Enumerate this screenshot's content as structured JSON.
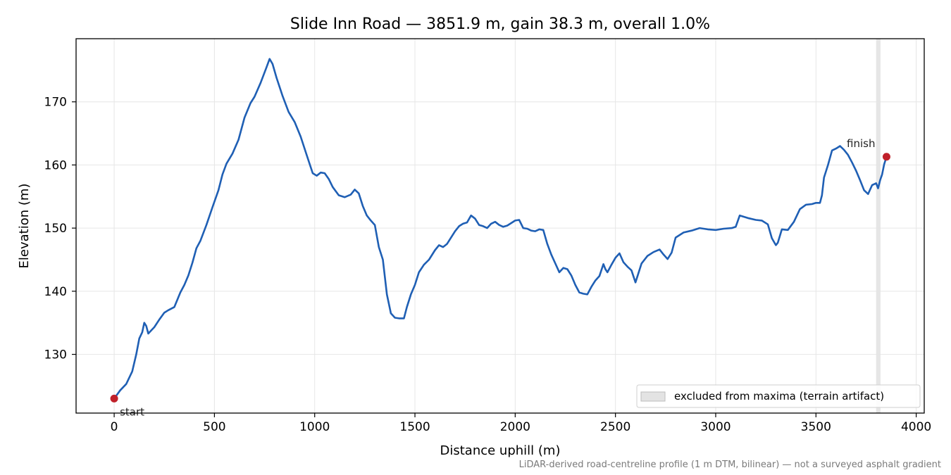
{
  "chart_data": {
    "type": "line",
    "title": "Slide Inn Road — 3851.9 m, gain 38.3 m, overall 1.0%",
    "xlabel": "Distance uphill (m)",
    "ylabel": "Elevation (m)",
    "xlim": [
      -190,
      4040
    ],
    "ylim": [
      120.7,
      180.0
    ],
    "xticks": [
      0,
      500,
      1000,
      1500,
      2000,
      2500,
      3000,
      3500,
      4000
    ],
    "yticks": [
      130,
      140,
      150,
      160,
      170
    ],
    "grid": true,
    "legend": {
      "placement": "lower-right",
      "entries": [
        "excluded from maxima (terrain artifact)"
      ]
    },
    "excluded_band": {
      "x": [
        3800,
        3822
      ],
      "color": "#e3e3e3"
    },
    "series": [
      {
        "color": "#1f5fb4",
        "x": [
          0,
          30,
          60,
          90,
          110,
          125,
          140,
          150,
          160,
          170,
          185,
          200,
          225,
          250,
          270,
          300,
          330,
          350,
          370,
          390,
          410,
          430,
          460,
          490,
          520,
          540,
          560,
          590,
          620,
          650,
          680,
          700,
          730,
          760,
          775,
          790,
          810,
          840,
          870,
          900,
          930,
          960,
          990,
          1010,
          1030,
          1050,
          1070,
          1090,
          1120,
          1150,
          1180,
          1200,
          1220,
          1240,
          1260,
          1280,
          1300,
          1320,
          1340,
          1360,
          1380,
          1400,
          1420,
          1445,
          1460,
          1480,
          1500,
          1520,
          1545,
          1570,
          1600,
          1620,
          1640,
          1660,
          1680,
          1700,
          1720,
          1740,
          1760,
          1780,
          1800,
          1820,
          1840,
          1860,
          1880,
          1900,
          1920,
          1940,
          1960,
          1980,
          2000,
          2020,
          2040,
          2060,
          2080,
          2100,
          2120,
          2140,
          2160,
          2180,
          2200,
          2220,
          2240,
          2260,
          2280,
          2300,
          2320,
          2340,
          2360,
          2380,
          2400,
          2420,
          2440,
          2450,
          2460,
          2480,
          2500,
          2520,
          2540,
          2560,
          2580,
          2600,
          2610,
          2630,
          2660,
          2690,
          2720,
          2740,
          2760,
          2780,
          2800,
          2840,
          2880,
          2920,
          2960,
          3000,
          3040,
          3080,
          3100,
          3120,
          3160,
          3200,
          3230,
          3260,
          3280,
          3300,
          3310,
          3330,
          3360,
          3390,
          3420,
          3450,
          3480,
          3500,
          3520,
          3530,
          3540,
          3560,
          3580,
          3600,
          3620,
          3640,
          3660,
          3680,
          3700,
          3720,
          3740,
          3760,
          3780,
          3800,
          3810,
          3820,
          3830,
          3840,
          3851.9
        ],
        "y": [
          123.0,
          124.3,
          125.3,
          127.3,
          130.0,
          132.5,
          133.5,
          135.0,
          134.5,
          133.3,
          133.8,
          134.3,
          135.5,
          136.6,
          137.0,
          137.5,
          139.8,
          141.0,
          142.5,
          144.5,
          146.8,
          148.0,
          150.5,
          153.3,
          156.0,
          158.5,
          160.2,
          161.8,
          164.0,
          167.5,
          169.8,
          170.8,
          173.0,
          175.5,
          176.8,
          176.0,
          173.8,
          170.9,
          168.4,
          166.8,
          164.5,
          161.6,
          158.7,
          158.3,
          158.8,
          158.7,
          157.8,
          156.5,
          155.2,
          154.9,
          155.3,
          156.1,
          155.5,
          153.5,
          152.0,
          151.2,
          150.5,
          147.0,
          145.0,
          139.5,
          136.5,
          135.8,
          135.7,
          135.7,
          137.5,
          139.5,
          141.0,
          143.0,
          144.2,
          145.0,
          146.5,
          147.3,
          147.0,
          147.5,
          148.5,
          149.5,
          150.3,
          150.7,
          150.9,
          152.0,
          151.5,
          150.5,
          150.3,
          150.0,
          150.7,
          151.0,
          150.5,
          150.2,
          150.4,
          150.8,
          151.2,
          151.3,
          150.0,
          149.9,
          149.6,
          149.5,
          149.8,
          149.7,
          147.5,
          145.8,
          144.4,
          143.0,
          143.7,
          143.5,
          142.5,
          141.0,
          139.8,
          139.6,
          139.5,
          140.7,
          141.7,
          142.4,
          144.3,
          143.5,
          143.0,
          144.2,
          145.3,
          146.0,
          144.6,
          143.9,
          143.3,
          141.4,
          142.4,
          144.4,
          145.6,
          146.2,
          146.6,
          145.8,
          145.1,
          146.1,
          148.5,
          149.3,
          149.6,
          150.0,
          149.8,
          149.7,
          149.9,
          150.0,
          150.2,
          152.0,
          151.6,
          151.3,
          151.2,
          150.6,
          148.4,
          147.3,
          147.7,
          149.8,
          149.7,
          151.0,
          153.0,
          153.7,
          153.8,
          154.0,
          154.0,
          155.2,
          158.0,
          160.0,
          162.3,
          162.6,
          163.0,
          162.4,
          161.6,
          160.4,
          159.1,
          157.6,
          156.0,
          155.4,
          156.8,
          157.1,
          156.3,
          157.6,
          158.5,
          160.1,
          161.3
        ]
      }
    ],
    "annotations": [
      {
        "text": "start",
        "x": 0,
        "y": 123.0
      },
      {
        "text": "finish",
        "x": 3851.9,
        "y": 161.3
      }
    ],
    "endpoint_color": "#c0202a",
    "footnote": "LiDAR-derived road-centreline profile (1 m DTM, bilinear) — not a surveyed asphalt gradient"
  }
}
